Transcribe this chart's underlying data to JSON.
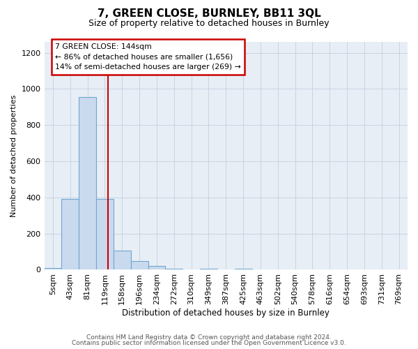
{
  "title": "7, GREEN CLOSE, BURNLEY, BB11 3QL",
  "subtitle": "Size of property relative to detached houses in Burnley",
  "xlabel": "Distribution of detached houses by size in Burnley",
  "ylabel": "Number of detached properties",
  "bin_labels": [
    "5sqm",
    "43sqm",
    "81sqm",
    "119sqm",
    "158sqm",
    "196sqm",
    "234sqm",
    "272sqm",
    "310sqm",
    "349sqm",
    "387sqm",
    "425sqm",
    "463sqm",
    "502sqm",
    "540sqm",
    "578sqm",
    "616sqm",
    "654sqm",
    "693sqm",
    "731sqm",
    "769sqm"
  ],
  "bar_heights": [
    10,
    393,
    955,
    393,
    107,
    50,
    22,
    5,
    0,
    5,
    0,
    5,
    0,
    0,
    0,
    0,
    0,
    0,
    0,
    0,
    0
  ],
  "bar_color": "#c9d9ee",
  "bar_edge_color": "#6fa8d0",
  "bar_width": 1.0,
  "property_line_x": 3.67,
  "annotation_text_line1": "7 GREEN CLOSE: 144sqm",
  "annotation_text_line2": "← 86% of detached houses are smaller (1,656)",
  "annotation_text_line3": "14% of semi-detached houses are larger (269) →",
  "annotation_box_color": "#cc0000",
  "ylim": [
    0,
    1260
  ],
  "yticks": [
    0,
    200,
    400,
    600,
    800,
    1000,
    1200
  ],
  "footer_line1": "Contains HM Land Registry data © Crown copyright and database right 2024.",
  "footer_line2": "Contains public sector information licensed under the Open Government Licence v3.0.",
  "bg_color": "#ffffff",
  "plot_bg_color": "#e8eef5",
  "grid_color": "#c8d4e4"
}
